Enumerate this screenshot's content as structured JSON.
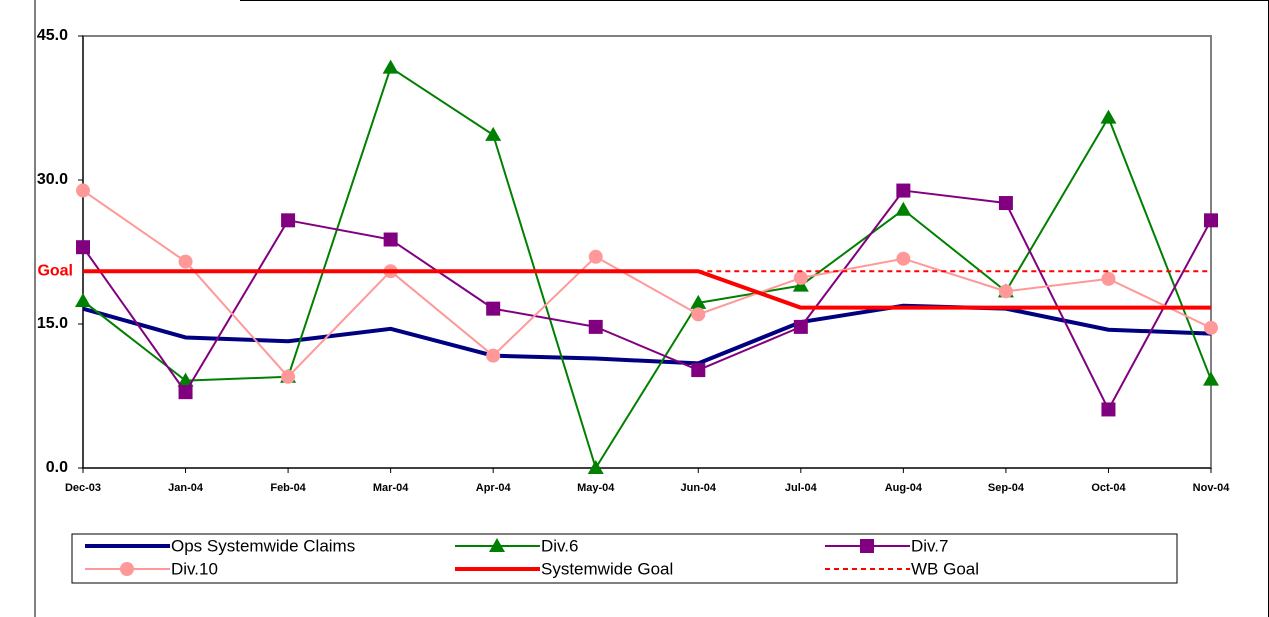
{
  "chart_data": {
    "type": "line",
    "categories": [
      "Dec-03",
      "Jan-04",
      "Feb-04",
      "Mar-04",
      "Apr-04",
      "May-04",
      "Jun-04",
      "Jul-04",
      "Aug-04",
      "Sep-04",
      "Oct-04",
      "Nov-04"
    ],
    "ylim": [
      0,
      45
    ],
    "yticks": [
      {
        "value": 0,
        "label": "0.0"
      },
      {
        "value": 15,
        "label": "15.0"
      },
      {
        "value": 30,
        "label": "30.0"
      },
      {
        "value": 45,
        "label": "45.0"
      }
    ],
    "annotation": "Goal",
    "annotation_color": "#ff0000",
    "series": [
      {
        "name": "Ops Systemwide Claims",
        "color": "#000080",
        "marker": "none",
        "style": "thick",
        "values": [
          16.6,
          13.6,
          13.2,
          14.5,
          11.7,
          11.4,
          10.9,
          15.2,
          16.9,
          16.6,
          14.4,
          14.0
        ]
      },
      {
        "name": "Div.6",
        "color": "#008000",
        "marker": "triangle",
        "style": "solid",
        "values": [
          17.4,
          9.1,
          9.5,
          41.7,
          34.7,
          0,
          17.2,
          19.0,
          26.9,
          18.4,
          36.5,
          9.2
        ]
      },
      {
        "name": "Div.7",
        "color": "#800080",
        "marker": "square",
        "style": "solid",
        "values": [
          23.0,
          7.9,
          25.8,
          23.8,
          16.6,
          14.7,
          10.2,
          14.7,
          28.9,
          27.6,
          6.1,
          25.8
        ]
      },
      {
        "name": "Div.10",
        "color": "#ff9999",
        "marker": "circle",
        "style": "solid",
        "values": [
          28.9,
          21.5,
          9.5,
          20.5,
          11.7,
          22.0,
          16.0,
          19.8,
          21.8,
          18.4,
          19.7,
          14.6
        ]
      },
      {
        "name": "Systemwide Goal",
        "color": "#ff0000",
        "marker": "none",
        "style": "thick",
        "values": [
          20.5,
          20.5,
          20.5,
          20.5,
          20.5,
          20.5,
          20.5,
          16.7,
          16.7,
          16.7,
          16.7,
          16.7
        ]
      },
      {
        "name": "WB Goal",
        "color": "#ff0000",
        "marker": "none",
        "style": "dashed",
        "values": [
          null,
          null,
          null,
          null,
          null,
          null,
          20.5,
          20.5,
          20.5,
          20.5,
          20.5,
          20.5
        ]
      }
    ]
  }
}
